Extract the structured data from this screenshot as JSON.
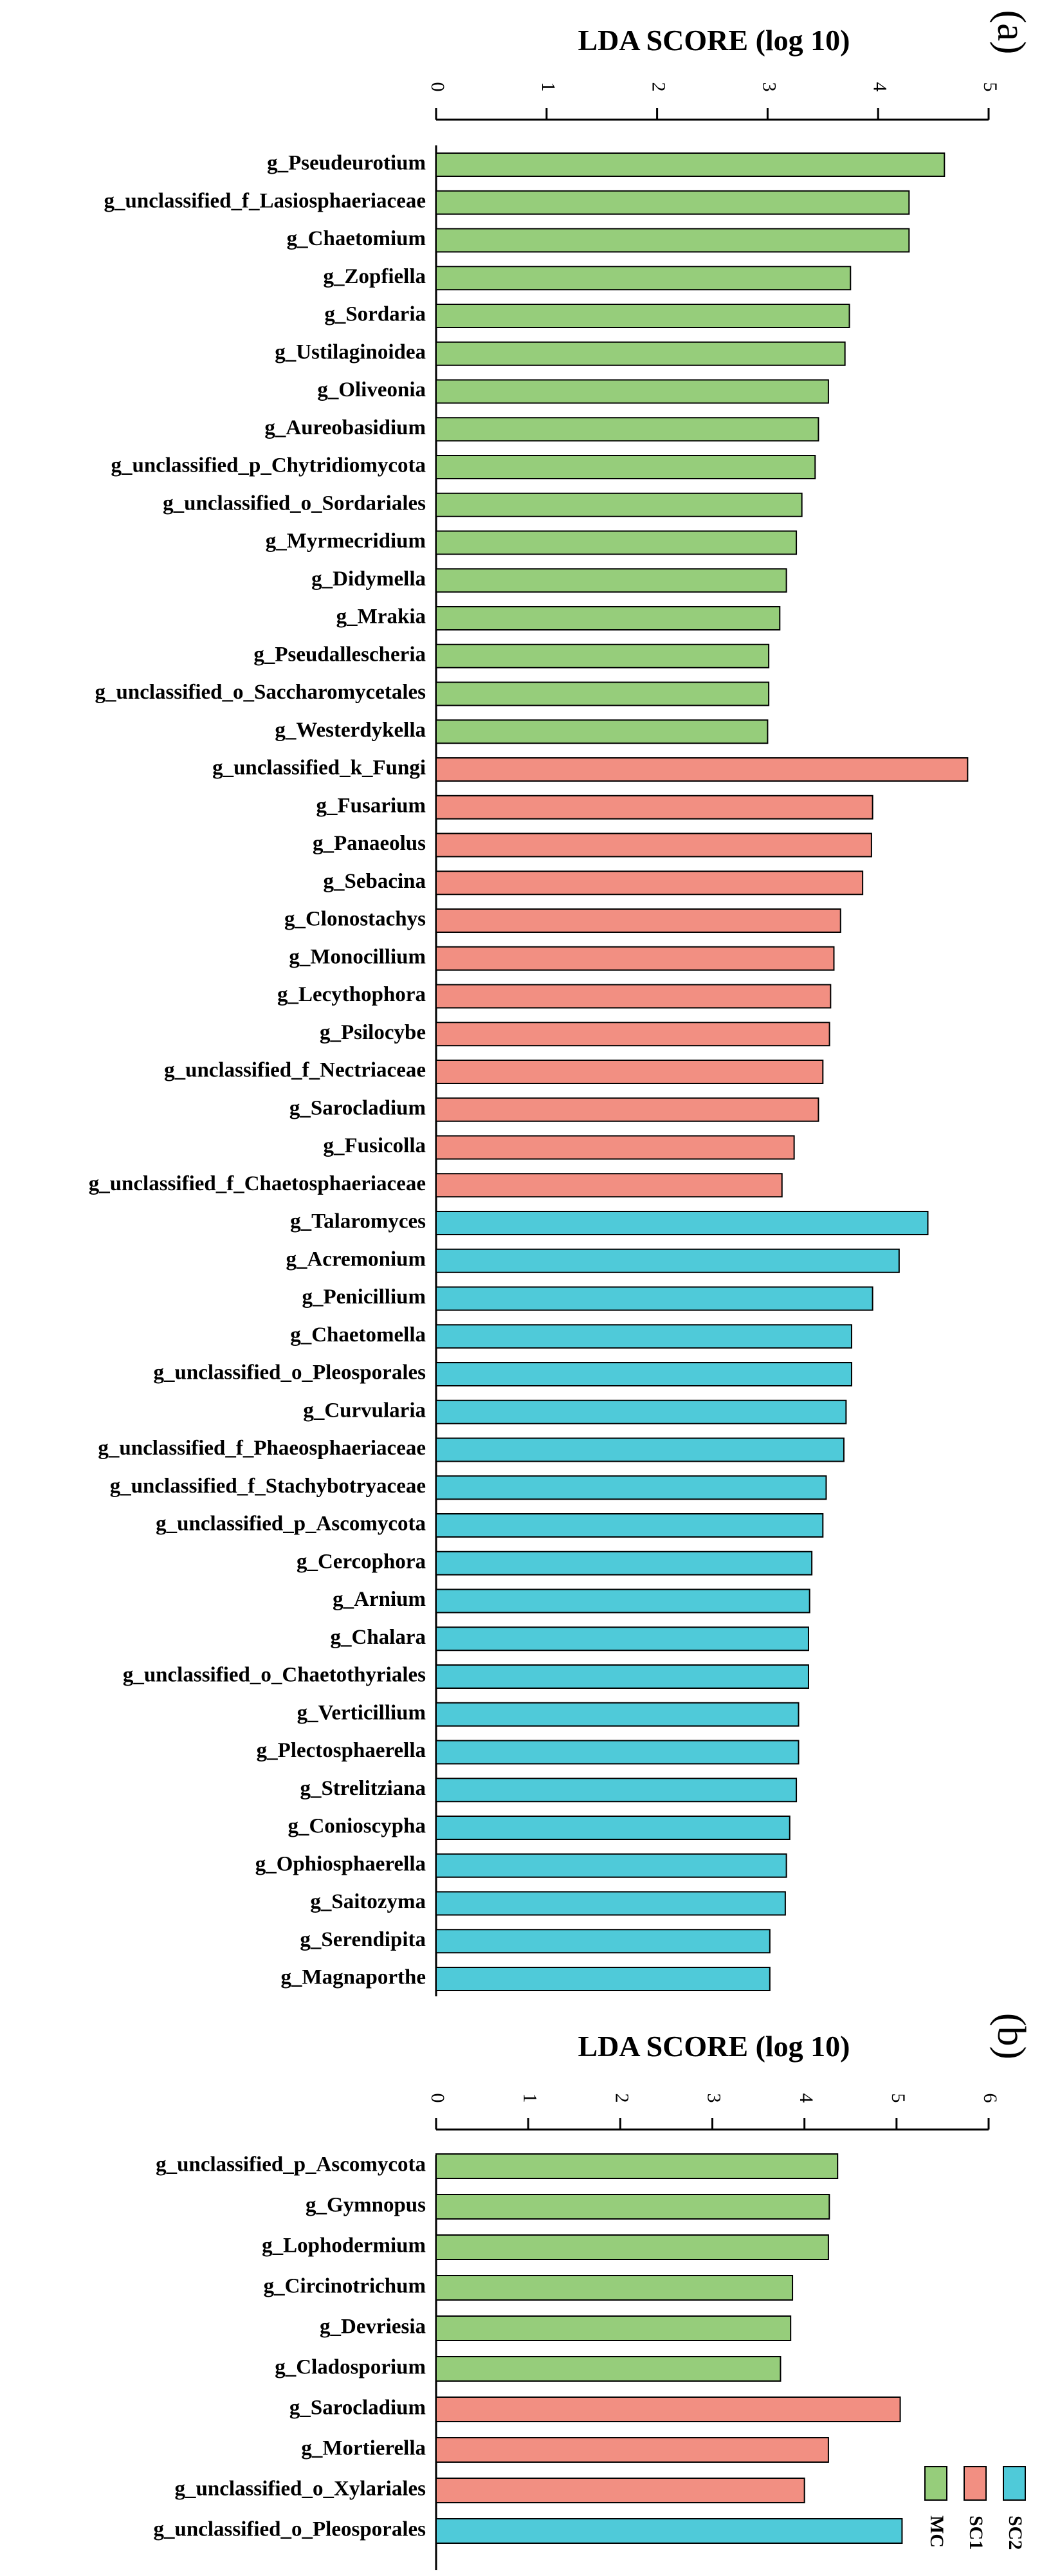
{
  "colors": {
    "MC": "#96cd7b",
    "SC1": "#f28f82",
    "SC2": "#4fcad9"
  },
  "legend": [
    {
      "key": "MC",
      "label": "MC"
    },
    {
      "key": "SC1",
      "label": "SC1"
    },
    {
      "key": "SC2",
      "label": "SC2"
    }
  ],
  "chart_data": [
    {
      "type": "bar",
      "orientation": "horizontal",
      "panel": "(a)",
      "title": "LDA SCORE (log 10)",
      "xlabel": "LDA SCORE (log 10)",
      "xlim": [
        0,
        5
      ],
      "ticks": [
        0,
        1,
        2,
        3,
        4,
        5
      ],
      "bars": [
        {
          "label": "g_Pseudeurotium",
          "value": 4.6,
          "group": "MC"
        },
        {
          "label": "g_unclassified_f_Lasiosphaeriaceae",
          "value": 4.28,
          "group": "MC"
        },
        {
          "label": "g_Chaetomium",
          "value": 4.28,
          "group": "MC"
        },
        {
          "label": "g_Zopfiella",
          "value": 3.75,
          "group": "MC"
        },
        {
          "label": "g_Sordaria",
          "value": 3.74,
          "group": "MC"
        },
        {
          "label": "g_Ustilaginoidea",
          "value": 3.7,
          "group": "MC"
        },
        {
          "label": "g_Oliveonia",
          "value": 3.55,
          "group": "MC"
        },
        {
          "label": "g_Aureobasidium",
          "value": 3.46,
          "group": "MC"
        },
        {
          "label": "g_unclassified_p_Chytridiomycota",
          "value": 3.43,
          "group": "MC"
        },
        {
          "label": "g_unclassified_o_Sordariales",
          "value": 3.31,
          "group": "MC"
        },
        {
          "label": "g_Myrmecridium",
          "value": 3.26,
          "group": "MC"
        },
        {
          "label": "g_Didymella",
          "value": 3.17,
          "group": "MC"
        },
        {
          "label": "g_Mrakia",
          "value": 3.11,
          "group": "MC"
        },
        {
          "label": "g_Pseudallescheria",
          "value": 3.01,
          "group": "MC"
        },
        {
          "label": "g_unclassified_o_Saccharomycetales",
          "value": 3.01,
          "group": "MC"
        },
        {
          "label": "g_Westerdykella",
          "value": 3.0,
          "group": "MC"
        },
        {
          "label": "g_unclassified_k_Fungi",
          "value": 4.81,
          "group": "SC1"
        },
        {
          "label": "g_Fusarium",
          "value": 3.95,
          "group": "SC1"
        },
        {
          "label": "g_Panaeolus",
          "value": 3.94,
          "group": "SC1"
        },
        {
          "label": "g_Sebacina",
          "value": 3.86,
          "group": "SC1"
        },
        {
          "label": "g_Clonostachys",
          "value": 3.66,
          "group": "SC1"
        },
        {
          "label": "g_Monocillium",
          "value": 3.6,
          "group": "SC1"
        },
        {
          "label": "g_Lecythophora",
          "value": 3.57,
          "group": "SC1"
        },
        {
          "label": "g_Psilocybe",
          "value": 3.56,
          "group": "SC1"
        },
        {
          "label": "g_unclassified_f_Nectriaceae",
          "value": 3.5,
          "group": "SC1"
        },
        {
          "label": "g_Sarocladium",
          "value": 3.46,
          "group": "SC1"
        },
        {
          "label": "g_Fusicolla",
          "value": 3.24,
          "group": "SC1"
        },
        {
          "label": "g_unclassified_f_Chaetosphaeriaceae",
          "value": 3.13,
          "group": "SC1"
        },
        {
          "label": "g_Talaromyces",
          "value": 4.45,
          "group": "SC2"
        },
        {
          "label": "g_Acremonium",
          "value": 4.19,
          "group": "SC2"
        },
        {
          "label": "g_Penicillium",
          "value": 3.95,
          "group": "SC2"
        },
        {
          "label": "g_Chaetomella",
          "value": 3.76,
          "group": "SC2"
        },
        {
          "label": "g_unclassified_o_Pleosporales",
          "value": 3.76,
          "group": "SC2"
        },
        {
          "label": "g_Curvularia",
          "value": 3.71,
          "group": "SC2"
        },
        {
          "label": "g_unclassified_f_Phaeosphaeriaceae",
          "value": 3.69,
          "group": "SC2"
        },
        {
          "label": "g_unclassified_f_Stachybotryaceae",
          "value": 3.53,
          "group": "SC2"
        },
        {
          "label": "g_unclassified_p_Ascomycota",
          "value": 3.5,
          "group": "SC2"
        },
        {
          "label": "g_Cercophora",
          "value": 3.4,
          "group": "SC2"
        },
        {
          "label": "g_Arnium",
          "value": 3.38,
          "group": "SC2"
        },
        {
          "label": "g_Chalara",
          "value": 3.37,
          "group": "SC2"
        },
        {
          "label": "g_unclassified_o_Chaetothyriales",
          "value": 3.37,
          "group": "SC2"
        },
        {
          "label": "g_Verticillium",
          "value": 3.28,
          "group": "SC2"
        },
        {
          "label": "g_Plectosphaerella",
          "value": 3.28,
          "group": "SC2"
        },
        {
          "label": "g_Strelitziana",
          "value": 3.26,
          "group": "SC2"
        },
        {
          "label": "g_Conioscypha",
          "value": 3.2,
          "group": "SC2"
        },
        {
          "label": "g_Ophiosphaerella",
          "value": 3.17,
          "group": "SC2"
        },
        {
          "label": "g_Saitozyma",
          "value": 3.16,
          "group": "SC2"
        },
        {
          "label": "g_Serendipita",
          "value": 3.02,
          "group": "SC2"
        },
        {
          "label": "g_Magnaporthe",
          "value": 3.02,
          "group": "SC2"
        }
      ]
    },
    {
      "type": "bar",
      "orientation": "horizontal",
      "panel": "(b)",
      "title": "LDA SCORE (log 10)",
      "xlabel": "LDA SCORE (log 10)",
      "xlim": [
        0,
        6
      ],
      "ticks": [
        0,
        1,
        2,
        3,
        4,
        5,
        6
      ],
      "bars": [
        {
          "label": "g_unclassified_p_Ascomycota",
          "value": 4.36,
          "group": "MC"
        },
        {
          "label": "g_Gymnopus",
          "value": 4.27,
          "group": "MC"
        },
        {
          "label": "g_Lophodermium",
          "value": 4.26,
          "group": "MC"
        },
        {
          "label": "g_Circinotrichum",
          "value": 3.87,
          "group": "MC"
        },
        {
          "label": "g_Devriesia",
          "value": 3.85,
          "group": "MC"
        },
        {
          "label": "g_Cladosporium",
          "value": 3.74,
          "group": "MC"
        },
        {
          "label": "g_Sarocladium",
          "value": 5.04,
          "group": "SC1"
        },
        {
          "label": "g_Mortierella",
          "value": 4.26,
          "group": "SC1"
        },
        {
          "label": "g_unclassified_o_Xylariales",
          "value": 4.0,
          "group": "SC1"
        },
        {
          "label": "g_unclassified_o_Pleosporales",
          "value": 5.06,
          "group": "SC2"
        }
      ]
    }
  ]
}
